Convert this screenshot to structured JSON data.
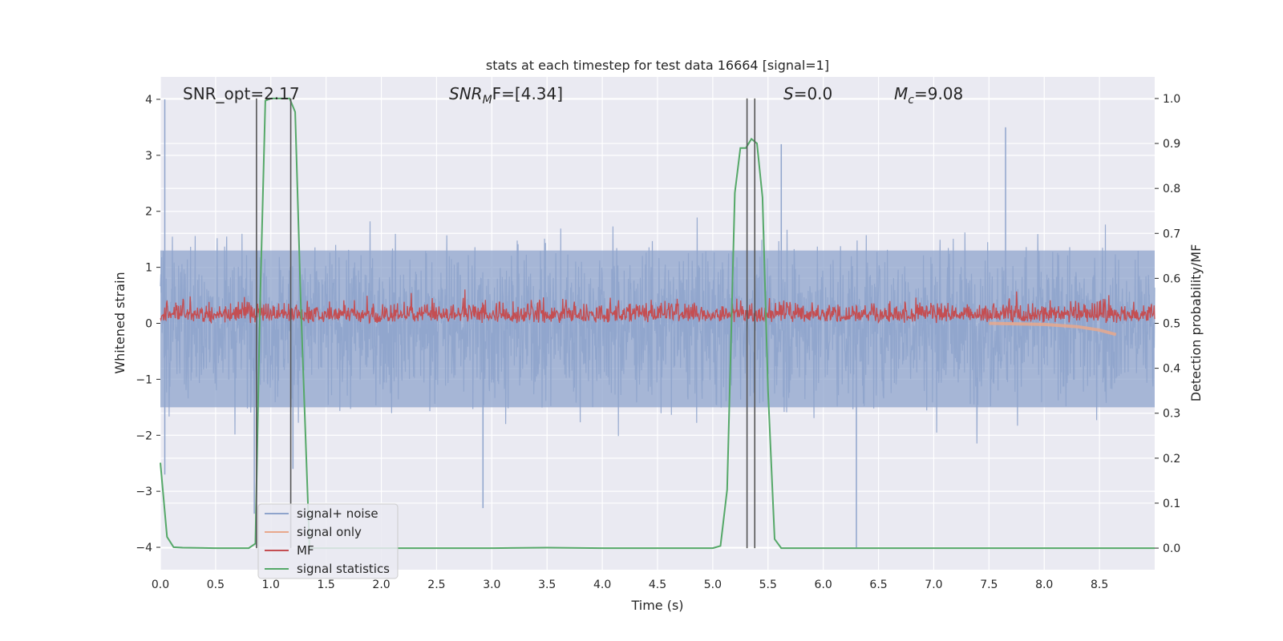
{
  "chart_data": {
    "type": "line",
    "title": "stats at each timestep for test data 16664 [signal=1]",
    "xlabel": "Time (s)",
    "ylabel": "Whitened strain",
    "y2label": "Detection probability/MF",
    "xlim": [
      0,
      9.0
    ],
    "ylim": [
      -4.4,
      4.4
    ],
    "y2lim": [
      -0.048,
      1.048
    ],
    "xticks": [
      0.0,
      0.5,
      1.0,
      1.5,
      2.0,
      2.5,
      3.0,
      3.5,
      4.0,
      4.5,
      5.0,
      5.5,
      6.0,
      6.5,
      7.0,
      7.5,
      8.0,
      8.5
    ],
    "xtick_labels": [
      "0.0",
      "0.5",
      "1.0",
      "1.5",
      "2.0",
      "2.5",
      "3.0",
      "3.5",
      "4.0",
      "4.5",
      "5.0",
      "5.5",
      "6.0",
      "6.5",
      "7.0",
      "7.5",
      "8.0",
      "8.5"
    ],
    "yticks": [
      -4,
      -3,
      -2,
      -1,
      0,
      1,
      2,
      3,
      4
    ],
    "ytick_labels": [
      "−4",
      "−3",
      "−2",
      "−1",
      "0",
      "1",
      "2",
      "3",
      "4"
    ],
    "y2ticks": [
      0.0,
      0.1,
      0.2,
      0.3,
      0.4,
      0.5,
      0.6,
      0.7,
      0.8,
      0.9,
      1.0
    ],
    "y2tick_labels": [
      "0.0",
      "0.1",
      "0.2",
      "0.3",
      "0.4",
      "0.5",
      "0.6",
      "0.7",
      "0.8",
      "0.9",
      "1.0"
    ],
    "grid": true,
    "legend_position": "lower-left",
    "annotations": {
      "snr_opt": "SNR_opt=2.17",
      "snr_mf_main": "SNR",
      "snr_mf_sub": "M",
      "snr_mf_rest": "F=[4.34]",
      "s_main": "S",
      "s_rest": "=0.0",
      "mc_main": "M",
      "mc_sub": "c",
      "mc_rest": "=9.08"
    },
    "vertical_markers_x": [
      0.87,
      1.18,
      5.31,
      5.38
    ],
    "series": [
      {
        "name": "signal+ noise",
        "color": "#8fa4cc",
        "axis": "left",
        "description_values": "noise envelope approx -2.3..2.7, extremes -4.0..4.0"
      },
      {
        "name": "signal only",
        "color": "#e8a88c",
        "axis": "left",
        "x": [
          7.5,
          8.0,
          8.3,
          8.5,
          8.65
        ],
        "y": [
          0.0,
          -0.02,
          -0.06,
          -0.12,
          -0.2
        ]
      },
      {
        "name": "MF",
        "color": "#c44e52",
        "axis": "right",
        "description_values": "fluctuates approx 0.5..0.6"
      },
      {
        "name": "signal statistics",
        "color": "#55a868",
        "axis": "right",
        "x": [
          0.0,
          0.06,
          0.12,
          0.2,
          0.5,
          0.8,
          0.86,
          0.9,
          0.95,
          1.0,
          1.1,
          1.17,
          1.22,
          1.27,
          1.35,
          2.0,
          3.0,
          3.5,
          4.0,
          4.5,
          5.0,
          5.07,
          5.13,
          5.2,
          5.25,
          5.3,
          5.35,
          5.4,
          5.45,
          5.5,
          5.56,
          5.62,
          6.0,
          7.0,
          8.0,
          9.0
        ],
        "y": [
          0.19,
          0.025,
          0.002,
          0.001,
          0.0,
          0.0,
          0.01,
          0.52,
          0.995,
          1.0,
          1.0,
          1.0,
          0.97,
          0.55,
          0.0,
          0.0,
          0.0,
          0.001,
          0.0,
          0.0,
          0.0,
          0.005,
          0.13,
          0.79,
          0.89,
          0.89,
          0.91,
          0.9,
          0.78,
          0.35,
          0.02,
          0.0,
          0.0,
          0.0,
          0.0,
          0.0
        ]
      }
    ]
  }
}
